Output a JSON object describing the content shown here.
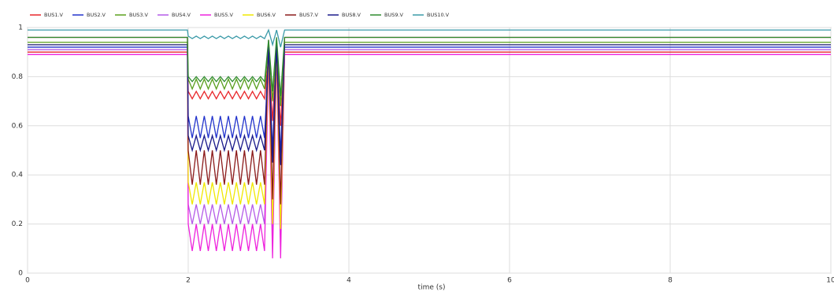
{
  "chart_data": {
    "type": "line",
    "xlabel": "time (s)",
    "x": [
      0,
      1.99,
      2,
      2.05,
      2.1,
      2.15,
      2.2,
      2.25,
      2.3,
      2.35,
      2.4,
      2.45,
      2.5,
      2.55,
      2.6,
      2.65,
      2.7,
      2.75,
      2.8,
      2.85,
      2.9,
      2.95,
      3,
      3.05,
      3.1,
      3.15,
      3.2,
      10
    ],
    "series": [
      {
        "name": "BUS1.V",
        "color": "#e8262a",
        "values": [
          0.9,
          0.9,
          0.74,
          0.71,
          0.74,
          0.71,
          0.74,
          0.71,
          0.74,
          0.71,
          0.74,
          0.71,
          0.74,
          0.71,
          0.74,
          0.71,
          0.74,
          0.71,
          0.74,
          0.71,
          0.74,
          0.71,
          0.88,
          0.62,
          0.9,
          0.6,
          0.9,
          0.9
        ]
      },
      {
        "name": "BUS2.V",
        "color": "#2233cc",
        "values": [
          0.92,
          0.92,
          0.64,
          0.55,
          0.64,
          0.55,
          0.64,
          0.55,
          0.64,
          0.55,
          0.64,
          0.55,
          0.64,
          0.55,
          0.64,
          0.55,
          0.64,
          0.55,
          0.64,
          0.55,
          0.64,
          0.55,
          0.9,
          0.5,
          0.92,
          0.48,
          0.92,
          0.92
        ]
      },
      {
        "name": "BUS3.V",
        "color": "#5aa01e",
        "values": [
          0.94,
          0.94,
          0.79,
          0.75,
          0.79,
          0.75,
          0.79,
          0.75,
          0.79,
          0.75,
          0.79,
          0.75,
          0.79,
          0.75,
          0.79,
          0.75,
          0.79,
          0.75,
          0.79,
          0.75,
          0.79,
          0.75,
          0.93,
          0.7,
          0.94,
          0.68,
          0.94,
          0.94
        ]
      },
      {
        "name": "BUS4.V",
        "color": "#b45ae8",
        "values": [
          0.91,
          0.91,
          0.28,
          0.2,
          0.28,
          0.2,
          0.28,
          0.2,
          0.28,
          0.2,
          0.28,
          0.2,
          0.28,
          0.2,
          0.28,
          0.2,
          0.28,
          0.2,
          0.28,
          0.2,
          0.28,
          0.2,
          0.9,
          0.15,
          0.91,
          0.12,
          0.91,
          0.91
        ]
      },
      {
        "name": "BUS5.V",
        "color": "#ee22dd",
        "values": [
          0.89,
          0.89,
          0.2,
          0.09,
          0.2,
          0.09,
          0.2,
          0.09,
          0.2,
          0.09,
          0.2,
          0.09,
          0.2,
          0.09,
          0.2,
          0.09,
          0.2,
          0.09,
          0.2,
          0.09,
          0.2,
          0.09,
          0.88,
          0.06,
          0.89,
          0.06,
          0.89,
          0.89
        ]
      },
      {
        "name": "BUS6.V",
        "color": "#f0e800",
        "values": [
          0.93,
          0.93,
          0.37,
          0.28,
          0.37,
          0.28,
          0.37,
          0.28,
          0.37,
          0.28,
          0.37,
          0.28,
          0.37,
          0.28,
          0.37,
          0.28,
          0.37,
          0.28,
          0.37,
          0.28,
          0.37,
          0.28,
          0.92,
          0.2,
          0.93,
          0.18,
          0.93,
          0.93
        ]
      },
      {
        "name": "BUS7.V",
        "color": "#8b1a1a",
        "values": [
          0.96,
          0.96,
          0.5,
          0.36,
          0.5,
          0.36,
          0.5,
          0.36,
          0.5,
          0.36,
          0.5,
          0.36,
          0.5,
          0.36,
          0.5,
          0.36,
          0.5,
          0.36,
          0.5,
          0.36,
          0.5,
          0.36,
          0.95,
          0.3,
          0.96,
          0.28,
          0.96,
          0.96
        ]
      },
      {
        "name": "BUS8.V",
        "color": "#1a1a8b",
        "values": [
          0.93,
          0.93,
          0.56,
          0.5,
          0.56,
          0.5,
          0.56,
          0.5,
          0.56,
          0.5,
          0.56,
          0.5,
          0.56,
          0.5,
          0.56,
          0.5,
          0.56,
          0.5,
          0.56,
          0.5,
          0.56,
          0.5,
          0.92,
          0.45,
          0.93,
          0.44,
          0.93,
          0.93
        ]
      },
      {
        "name": "BUS9.V",
        "color": "#2e8b2e",
        "values": [
          0.96,
          0.96,
          0.8,
          0.78,
          0.8,
          0.78,
          0.8,
          0.78,
          0.8,
          0.78,
          0.8,
          0.78,
          0.8,
          0.78,
          0.8,
          0.78,
          0.8,
          0.78,
          0.8,
          0.78,
          0.8,
          0.78,
          0.95,
          0.74,
          0.96,
          0.72,
          0.96,
          0.96
        ]
      },
      {
        "name": "BUS10.V",
        "color": "#3a9aa8",
        "values": [
          0.99,
          0.99,
          0.965,
          0.955,
          0.965,
          0.955,
          0.965,
          0.955,
          0.965,
          0.955,
          0.965,
          0.955,
          0.965,
          0.955,
          0.965,
          0.955,
          0.965,
          0.955,
          0.965,
          0.955,
          0.965,
          0.955,
          0.99,
          0.93,
          0.99,
          0.92,
          0.99,
          0.99
        ]
      }
    ],
    "xlim": [
      0,
      10
    ],
    "xticks": [
      0,
      2,
      4,
      6,
      8,
      10
    ],
    "ylim": [
      0,
      1
    ],
    "yticks": [
      0,
      0.2,
      0.4,
      0.6,
      0.8,
      1
    ],
    "grid": true
  }
}
